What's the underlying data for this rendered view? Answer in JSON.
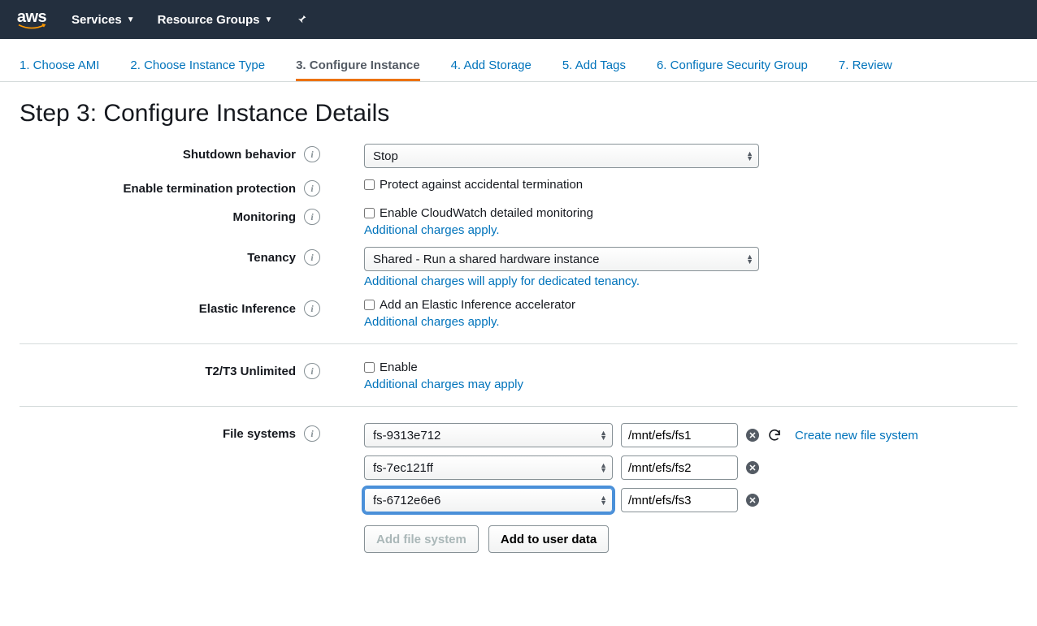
{
  "nav": {
    "logo_text": "aws",
    "services": "Services",
    "resource_groups": "Resource Groups"
  },
  "wizard": {
    "steps": [
      "1. Choose AMI",
      "2. Choose Instance Type",
      "3. Configure Instance",
      "4. Add Storage",
      "5. Add Tags",
      "6. Configure Security Group",
      "7. Review"
    ],
    "active_index": 2
  },
  "page": {
    "title": "Step 3: Configure Instance Details"
  },
  "form": {
    "shutdown": {
      "label": "Shutdown behavior",
      "value": "Stop"
    },
    "termination": {
      "label": "Enable termination protection",
      "checkbox_label": "Protect against accidental termination"
    },
    "monitoring": {
      "label": "Monitoring",
      "checkbox_label": "Enable CloudWatch detailed monitoring",
      "helper": "Additional charges apply."
    },
    "tenancy": {
      "label": "Tenancy",
      "value": "Shared - Run a shared hardware instance",
      "helper": "Additional charges will apply for dedicated tenancy."
    },
    "elastic_inference": {
      "label": "Elastic Inference",
      "checkbox_label": "Add an Elastic Inference accelerator",
      "helper": "Additional charges apply."
    },
    "unlimited": {
      "label": "T2/T3 Unlimited",
      "checkbox_label": "Enable",
      "helper": "Additional charges may apply"
    },
    "filesystems": {
      "label": "File systems",
      "create_link": "Create new file system",
      "rows": [
        {
          "fs": "fs-9313e712",
          "mount": "/mnt/efs/fs1",
          "focused": false,
          "show_refresh": true
        },
        {
          "fs": "fs-7ec121ff",
          "mount": "/mnt/efs/fs2",
          "focused": false,
          "show_refresh": false
        },
        {
          "fs": "fs-6712e6e6",
          "mount": "/mnt/efs/fs3",
          "focused": true,
          "show_refresh": false
        }
      ],
      "add_button": "Add file system",
      "add_userdata_button": "Add to user data"
    }
  },
  "colors": {
    "nav_bg": "#232f3e",
    "link": "#0073bb",
    "active_underline": "#ec7211",
    "focus_ring": "#4a90d9",
    "aws_smile": "#ff9900"
  }
}
